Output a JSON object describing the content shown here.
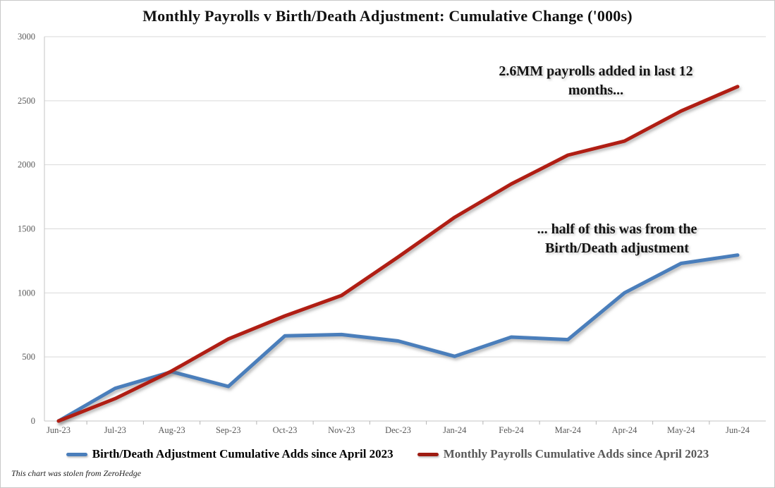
{
  "title": "Monthly Payrolls v Birth/Death Adjustment: Cumulative Change ('000s)",
  "annotations": {
    "payrolls": {
      "line1": "2.6MM payrolls added in last 12",
      "line2": "months..."
    },
    "birth_death": {
      "line1": "... half of this was from the",
      "line2": "Birth/Death adjustment"
    }
  },
  "legend": {
    "items": [
      {
        "label": "Birth/Death Adjustment Cumulative Adds since April 2023",
        "marker_color": "#4a7ebb",
        "text_color": "#000000"
      },
      {
        "label": "Monthly Payrolls Cumulative Adds since April 2023",
        "marker_color": "#9e1b12",
        "text_color": "#595959"
      }
    ]
  },
  "footer": "This chart was stolen from ZeroHedge",
  "colors": {
    "birth_death_line": "#4a7ebb",
    "payrolls_line": "#b01e14",
    "gridline": "#d9d9d9",
    "axis_line": "#c6c6c6",
    "tick_mark": "#b3b3b3",
    "axis_text": "#595959"
  },
  "chart_data": {
    "type": "line",
    "title": "Monthly Payrolls v Birth/Death Adjustment: Cumulative Change ('000s)",
    "categories": [
      "Jun-23",
      "Jul-23",
      "Aug-23",
      "Sep-23",
      "Oct-23",
      "Nov-23",
      "Dec-23",
      "Jan-24",
      "Feb-24",
      "Mar-24",
      "Apr-24",
      "May-24",
      "Jun-24"
    ],
    "series": [
      {
        "name": "Birth/Death Adjustment Cumulative Adds since April 2023",
        "color": "#4a7ebb",
        "values": [
          0,
          255,
          385,
          270,
          665,
          675,
          625,
          505,
          655,
          635,
          1000,
          1230,
          1295
        ]
      },
      {
        "name": "Monthly Payrolls Cumulative Adds since April 2023",
        "color": "#b01e14",
        "values": [
          0,
          175,
          390,
          640,
          820,
          980,
          1280,
          1590,
          1850,
          2075,
          2185,
          2420,
          2610
        ]
      }
    ],
    "xlabel": "",
    "ylabel": "",
    "ylim": [
      0,
      3000
    ],
    "yticks": [
      0,
      500,
      1000,
      1500,
      2000,
      2500,
      3000
    ],
    "grid": true,
    "legend_position": "bottom"
  }
}
